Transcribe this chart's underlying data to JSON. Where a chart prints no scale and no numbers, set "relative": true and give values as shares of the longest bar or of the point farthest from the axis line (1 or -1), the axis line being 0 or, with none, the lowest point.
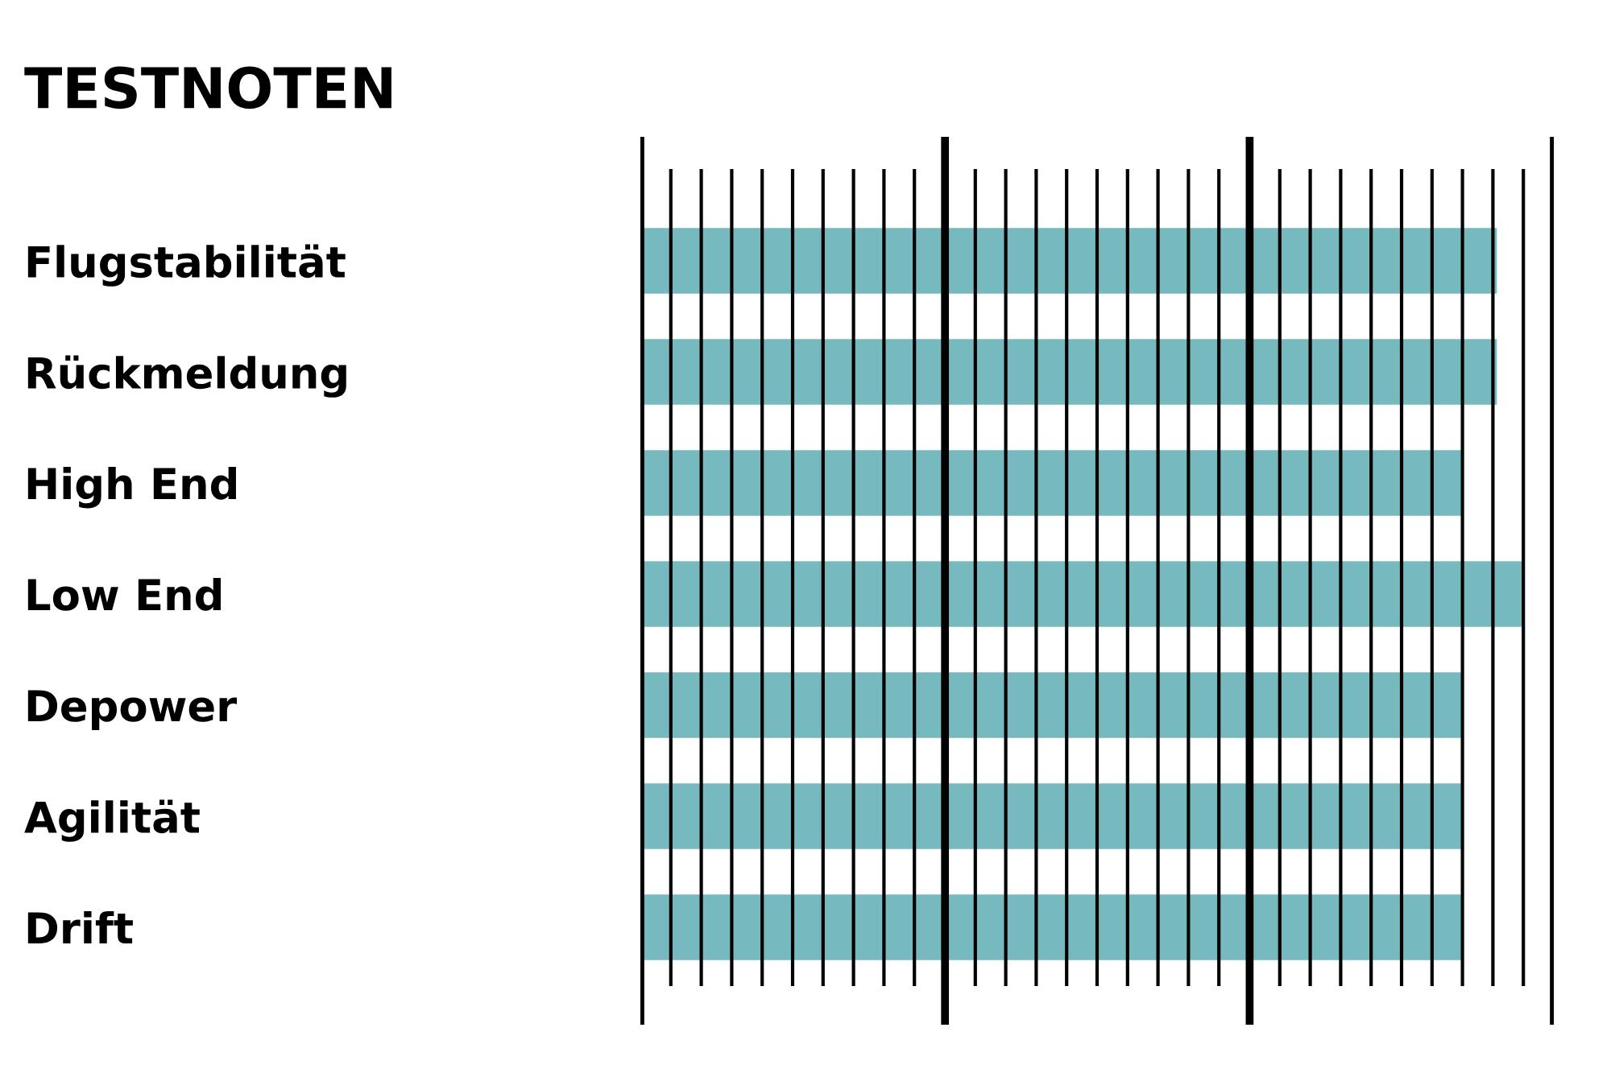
{
  "chart_data": {
    "type": "bar",
    "orientation": "horizontal",
    "title": "TESTNOTEN",
    "relative": true,
    "categories": [
      "Flugstabilität",
      "Rückmeldung",
      "High End",
      "Low End",
      "Depower",
      "Agilität",
      "Drift"
    ],
    "values": [
      0.97,
      0.97,
      0.93,
      1,
      0.93,
      0.93,
      0.93
    ],
    "color": "#76b9bf",
    "grid": "x",
    "ref_lines": [
      {
        "axis": "x",
        "value": 0.345,
        "color": "#000000"
      },
      {
        "axis": "x",
        "value": 0.69,
        "color": "#000000"
      }
    ],
    "tick_labels": "y"
  }
}
